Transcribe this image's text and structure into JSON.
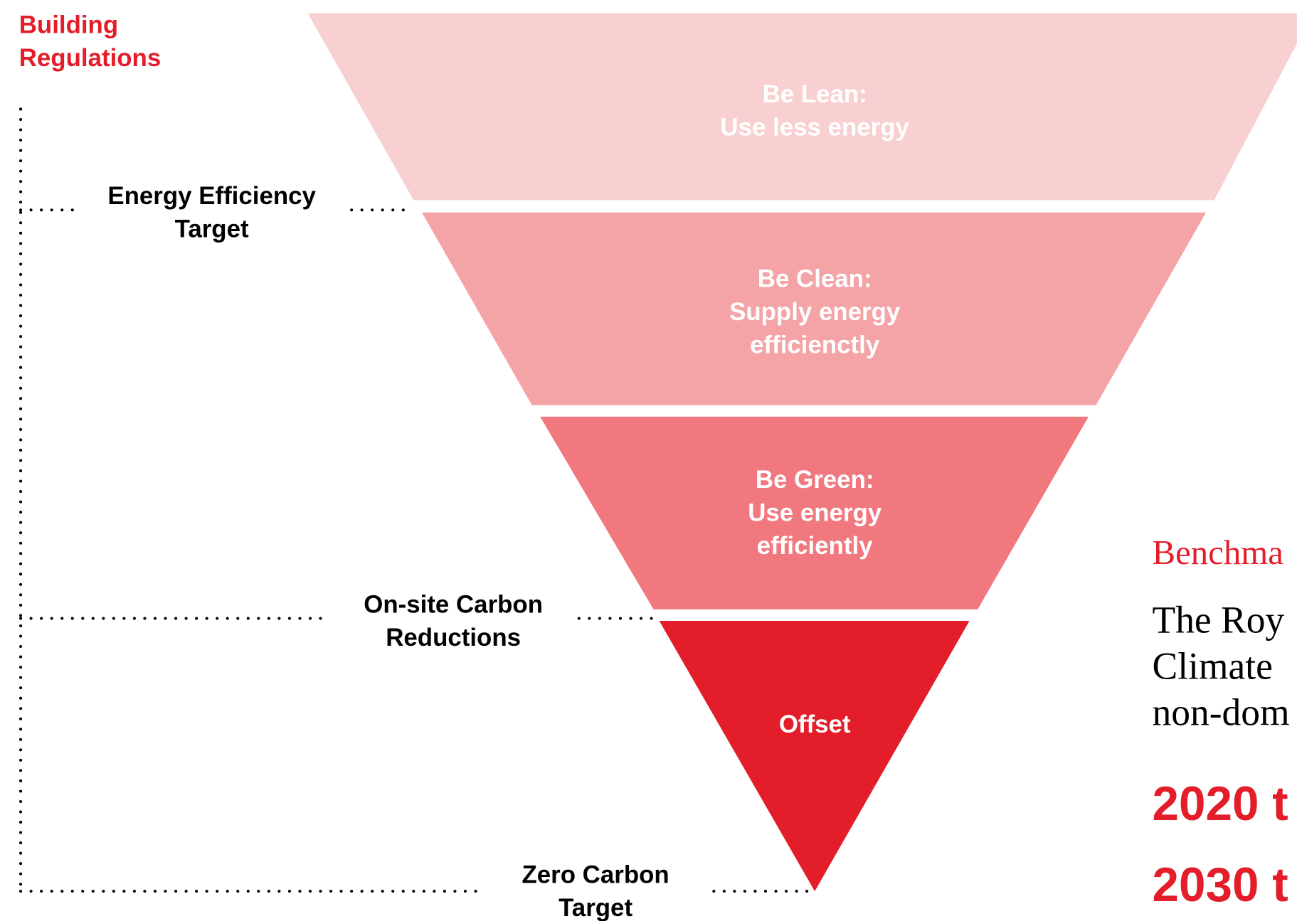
{
  "header": {
    "title": [
      "Building",
      "Regulations"
    ]
  },
  "funnel": [
    {
      "lines": [
        "Be Lean:",
        "Use less energy"
      ]
    },
    {
      "lines": [
        "Be Clean:",
        "Supply energy",
        "efficienctly"
      ]
    },
    {
      "lines": [
        "Be Green:",
        "Use energy",
        "efficiently"
      ]
    },
    {
      "lines": [
        "Offset"
      ]
    }
  ],
  "targets": [
    {
      "lines": [
        "Energy Efficiency",
        "Target"
      ]
    },
    {
      "lines": [
        "On-site Carbon",
        "Reductions"
      ]
    },
    {
      "lines": [
        "Zero Carbon",
        "Target"
      ]
    }
  ],
  "side": {
    "heading": "Benchma",
    "body": [
      "The Roy",
      "Climate",
      "non-dom"
    ],
    "milestones": [
      "2020 t",
      "2030 t"
    ]
  }
}
